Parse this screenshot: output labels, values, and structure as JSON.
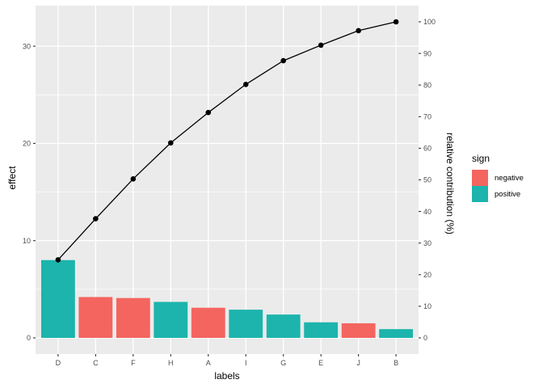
{
  "chart_data": {
    "type": "bar",
    "subtype": "pareto-bar-with-cumulative-line",
    "title": "",
    "categories": [
      "D",
      "C",
      "F",
      "H",
      "A",
      "I",
      "G",
      "E",
      "J",
      "B"
    ],
    "bar_series": {
      "name": "effect",
      "values": [
        8.0,
        4.2,
        4.1,
        3.7,
        3.1,
        2.9,
        2.4,
        1.6,
        1.5,
        0.9
      ],
      "signs": [
        "positive",
        "negative",
        "negative",
        "positive",
        "negative",
        "positive",
        "positive",
        "positive",
        "negative",
        "positive"
      ]
    },
    "line_series": {
      "name": "cumulative relative contribution",
      "cumulative_pct": [
        24.7,
        37.7,
        50.3,
        61.7,
        71.3,
        80.2,
        87.7,
        92.6,
        97.2,
        100
      ],
      "color": "#000000",
      "point_color": "#000000"
    },
    "xlabel": "labels",
    "ylabel_left": "effect",
    "ylabel_right": "relative contribution (%)",
    "yticks_left": [
      0,
      10,
      20,
      30
    ],
    "yticks_left_minor": [
      5,
      15,
      25
    ],
    "yticks_right": [
      0,
      10,
      20,
      30,
      40,
      50,
      60,
      70,
      80,
      90,
      100
    ],
    "ylim_left": [
      -1.7,
      34.3
    ],
    "grid": "on",
    "legend": {
      "title": "sign",
      "position": "right",
      "entries": [
        {
          "label": "negative",
          "color": "#F4655F"
        },
        {
          "label": "positive",
          "color": "#1CB4AC"
        }
      ]
    },
    "colors": {
      "panel_background": "#EBEBEB",
      "gridline": "#FFFFFF",
      "tick_mark": "#333333",
      "tick_label": "#4D4D4D",
      "axis_title": "#000000"
    }
  }
}
